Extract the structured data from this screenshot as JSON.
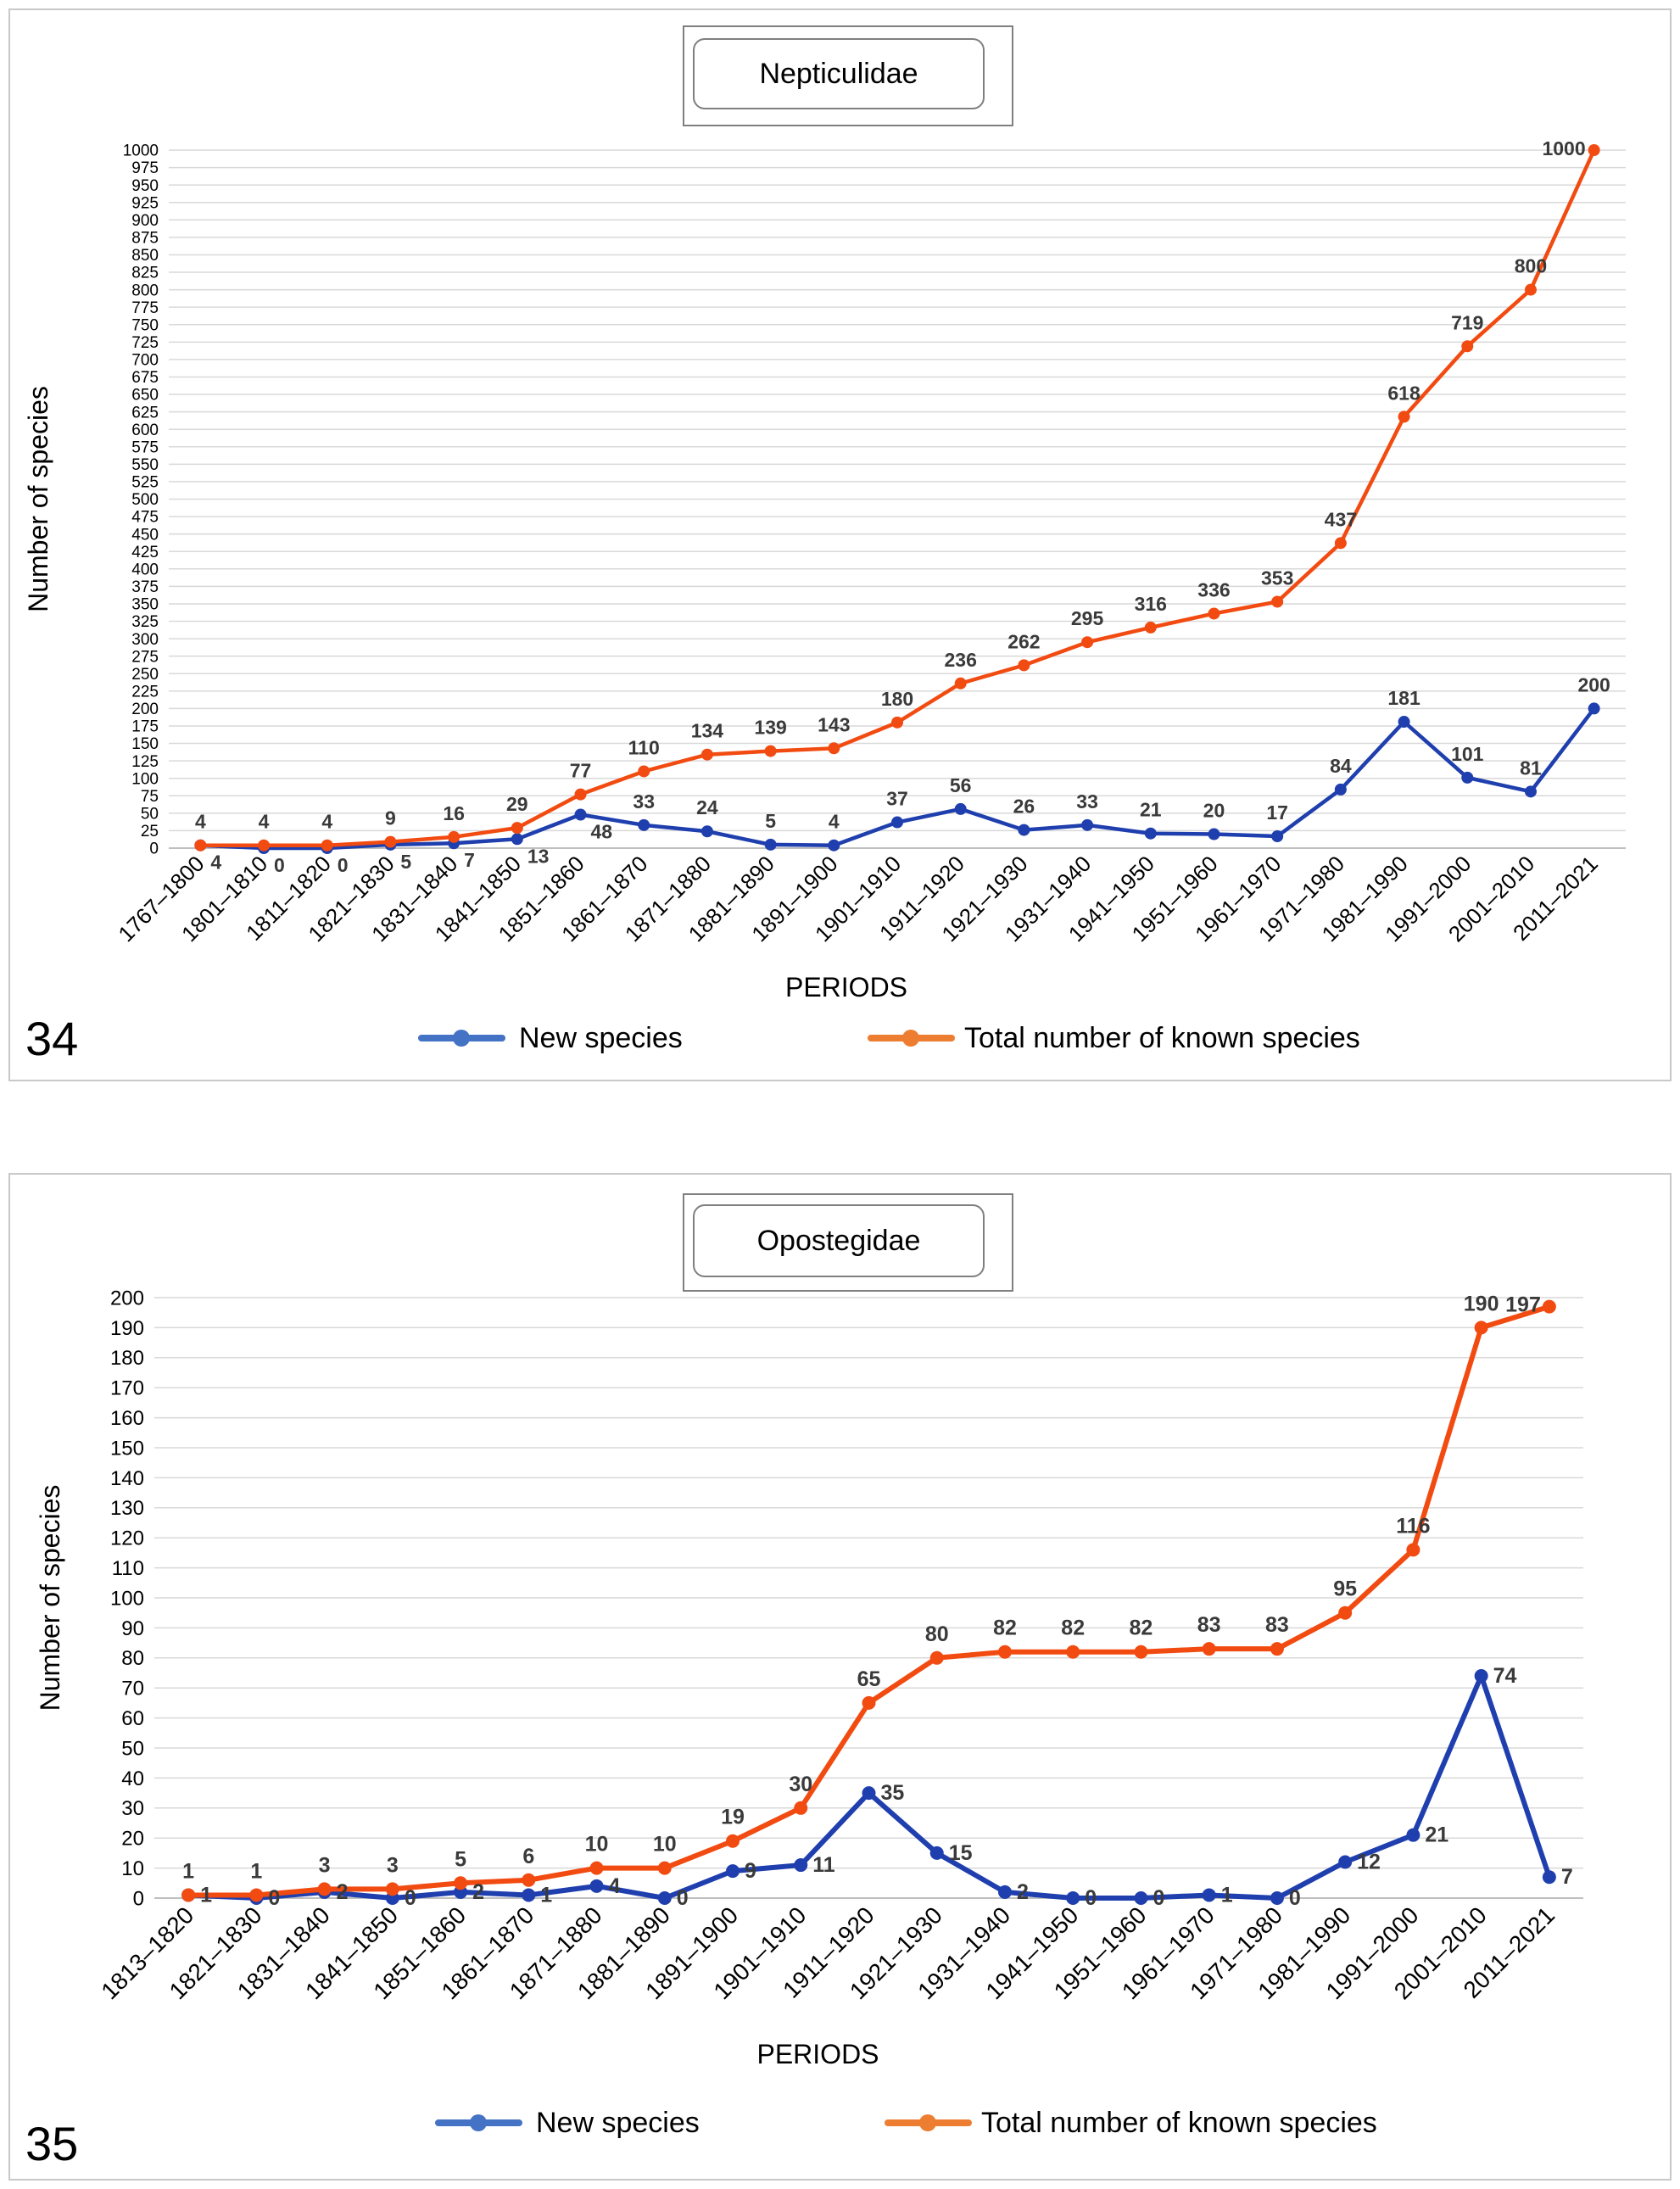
{
  "chart_data": [
    {
      "id": "34",
      "panel_label": "34",
      "type": "line",
      "title": "Nepticulidae",
      "xlabel": "PERIODS",
      "ylabel": "Number of species",
      "ylim": [
        0,
        1000
      ],
      "ytick_step": 25,
      "grid": true,
      "legend_position": "bottom",
      "categories": [
        "1767–1800",
        "1801–1810",
        "1811–1820",
        "1821–1830",
        "1831–1840",
        "1841–1850",
        "1851–1860",
        "1861–1870",
        "1871–1880",
        "1881–1890",
        "1891–1900",
        "1901–1910",
        "1911–1920",
        "1921–1930",
        "1931–1940",
        "1941–1950",
        "1951–1960",
        "1961–1970",
        "1971–1980",
        "1981–1990",
        "1991–2000",
        "2001–2010",
        "2011–2021"
      ],
      "series": [
        {
          "name": "New species",
          "color": "#1f3fae",
          "legend_color": "#4472c4",
          "values": [
            4,
            0,
            0,
            5,
            7,
            13,
            48,
            33,
            24,
            5,
            4,
            37,
            56,
            26,
            33,
            21,
            20,
            17,
            84,
            181,
            101,
            81,
            200
          ]
        },
        {
          "name": "Total number of known species",
          "color": "#f24b11",
          "legend_color": "#ed7d31",
          "values": [
            4,
            4,
            4,
            9,
            16,
            29,
            77,
            110,
            134,
            139,
            143,
            180,
            236,
            262,
            295,
            316,
            336,
            353,
            437,
            618,
            719,
            800,
            1000
          ]
        }
      ]
    },
    {
      "id": "35",
      "panel_label": "35",
      "type": "line",
      "title": "Opostegidae",
      "xlabel": "PERIODS",
      "ylabel": "Number of species",
      "ylim": [
        0,
        200
      ],
      "ytick_step": 10,
      "grid": true,
      "legend_position": "bottom",
      "categories": [
        "1813–1820",
        "1821–1830",
        "1831–1840",
        "1841–1850",
        "1851–1860",
        "1861–1870",
        "1871–1880",
        "1881–1890",
        "1891–1900",
        "1901–1910",
        "1911–1920",
        "1921–1930",
        "1931–1940",
        "1941–1950",
        "1951–1960",
        "1961–1970",
        "1971–1980",
        "1981–1990",
        "1991–2000",
        "2001–2010",
        "2011–2021"
      ],
      "series": [
        {
          "name": "New species",
          "color": "#1f3fae",
          "legend_color": "#4472c4",
          "values": [
            1,
            0,
            2,
            0,
            2,
            1,
            4,
            0,
            9,
            11,
            35,
            15,
            2,
            0,
            0,
            1,
            0,
            12,
            21,
            74,
            7
          ]
        },
        {
          "name": "Total number of known species",
          "color": "#f24b11",
          "legend_color": "#ed7d31",
          "values": [
            1,
            1,
            3,
            3,
            5,
            6,
            10,
            10,
            19,
            30,
            65,
            80,
            82,
            82,
            82,
            83,
            83,
            95,
            116,
            190,
            197
          ]
        }
      ]
    }
  ]
}
